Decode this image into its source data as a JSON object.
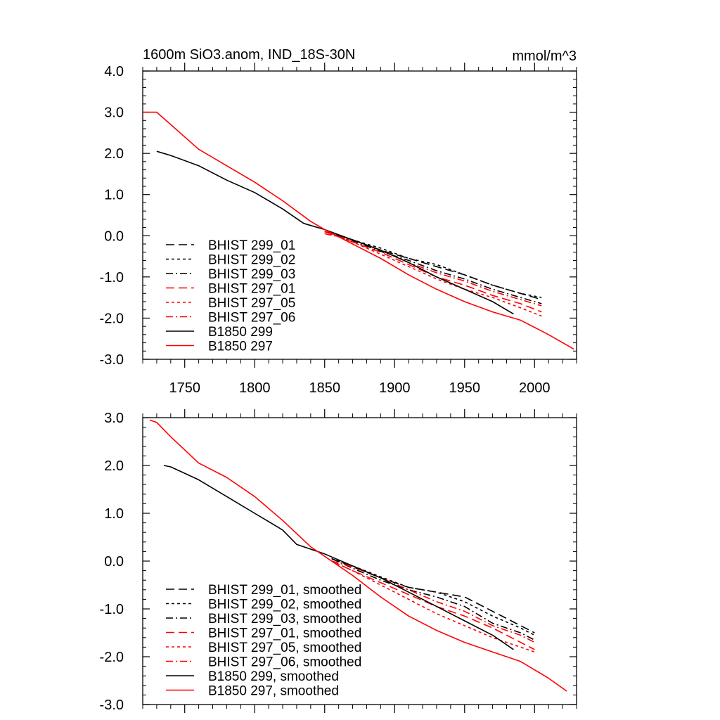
{
  "figure": {
    "title_left": "1600m SiO3.anom, IND_18S-30N",
    "title_right": "mmol/m^3"
  },
  "chart_data": [
    {
      "type": "line",
      "xlim": [
        1720,
        2030
      ],
      "ylim": [
        -3.0,
        4.0
      ],
      "x_ticks": [
        1750,
        1800,
        1850,
        1900,
        1950,
        2000
      ],
      "x_tick_labels": [
        "1750",
        "1800",
        "1850",
        "1900",
        "1950",
        "2000"
      ],
      "y_ticks": [
        4.0,
        3.0,
        2.0,
        1.0,
        0.0,
        -1.0,
        -2.0,
        -3.0
      ],
      "y_tick_labels": [
        "4.0",
        "3.0",
        "2.0",
        "1.0",
        "0.0",
        "-1.0",
        "-2.0",
        "-3.0"
      ],
      "legend_position": "bottom-left",
      "series": [
        {
          "name": "BHIST 299_01",
          "color": "#000000",
          "dash": "long-dash",
          "x": [
            1850,
            1870,
            1890,
            1910,
            1930,
            1950,
            1970,
            1990,
            2005
          ],
          "y": [
            0.1,
            -0.1,
            -0.35,
            -0.55,
            -0.75,
            -0.95,
            -1.2,
            -1.4,
            -1.55
          ]
        },
        {
          "name": "BHIST 299_02",
          "color": "#000000",
          "dash": "short-dash",
          "x": [
            1850,
            1870,
            1890,
            1910,
            1930,
            1950,
            1970,
            1990,
            2005
          ],
          "y": [
            0.1,
            -0.1,
            -0.3,
            -0.55,
            -0.7,
            -0.95,
            -1.2,
            -1.4,
            -1.5
          ]
        },
        {
          "name": "BHIST 299_03",
          "color": "#000000",
          "dash": "dash-dot",
          "x": [
            1850,
            1870,
            1890,
            1910,
            1930,
            1950,
            1970,
            1990,
            2005
          ],
          "y": [
            0.1,
            -0.12,
            -0.38,
            -0.6,
            -0.85,
            -1.05,
            -1.3,
            -1.5,
            -1.65
          ]
        },
        {
          "name": "BHIST 297_01",
          "color": "#ff0000",
          "dash": "long-dash",
          "x": [
            1850,
            1870,
            1890,
            1910,
            1930,
            1950,
            1970,
            1990,
            2005
          ],
          "y": [
            0.1,
            -0.15,
            -0.4,
            -0.7,
            -1.0,
            -1.2,
            -1.45,
            -1.65,
            -1.85
          ]
        },
        {
          "name": "BHIST 297_05",
          "color": "#ff0000",
          "dash": "short-dash",
          "x": [
            1850,
            1870,
            1890,
            1910,
            1930,
            1950,
            1970,
            1990,
            2005
          ],
          "y": [
            0.1,
            -0.15,
            -0.45,
            -0.75,
            -1.05,
            -1.3,
            -1.5,
            -1.75,
            -1.95
          ]
        },
        {
          "name": "BHIST 297_06",
          "color": "#ff0000",
          "dash": "dash-dot",
          "x": [
            1850,
            1870,
            1890,
            1910,
            1930,
            1950,
            1970,
            1990,
            2005
          ],
          "y": [
            0.05,
            -0.1,
            -0.35,
            -0.65,
            -0.9,
            -1.1,
            -1.35,
            -1.55,
            -1.7
          ]
        },
        {
          "name": "B1850 299",
          "color": "#000000",
          "dash": "solid",
          "x": [
            1730,
            1740,
            1760,
            1780,
            1800,
            1820,
            1835,
            1850,
            1870,
            1890,
            1910,
            1930,
            1950,
            1970,
            1985
          ],
          "y": [
            2.05,
            1.95,
            1.7,
            1.35,
            1.05,
            0.65,
            0.3,
            0.15,
            -0.1,
            -0.35,
            -0.65,
            -1.0,
            -1.3,
            -1.6,
            -1.9
          ]
        },
        {
          "name": "B1850 297",
          "color": "#ff0000",
          "dash": "solid",
          "x": [
            1720,
            1730,
            1740,
            1760,
            1780,
            1800,
            1820,
            1840,
            1850,
            1870,
            1890,
            1910,
            1930,
            1950,
            1970,
            1990,
            2010,
            2028
          ],
          "y": [
            3.0,
            3.0,
            2.7,
            2.1,
            1.7,
            1.3,
            0.85,
            0.35,
            0.15,
            -0.2,
            -0.55,
            -0.95,
            -1.3,
            -1.6,
            -1.85,
            -2.05,
            -2.4,
            -2.75
          ]
        }
      ]
    },
    {
      "type": "line",
      "xlim": [
        1720,
        2030
      ],
      "ylim": [
        -3.0,
        3.0
      ],
      "x_ticks": [
        1750,
        1800,
        1850,
        1900,
        1950,
        2000
      ],
      "y_ticks": [
        3.0,
        2.0,
        1.0,
        0.0,
        -1.0,
        -2.0,
        -3.0
      ],
      "y_tick_labels": [
        "3.0",
        "2.0",
        "1.0",
        "0.0",
        "-1.0",
        "-2.0",
        "-3.0"
      ],
      "legend_position": "bottom-left",
      "series": [
        {
          "name": "BHIST 299_01, smoothed",
          "color": "#000000",
          "dash": "long-dash",
          "x": [
            1855,
            1870,
            1890,
            1910,
            1930,
            1950,
            1970,
            1990,
            2000
          ],
          "y": [
            0.05,
            -0.12,
            -0.35,
            -0.55,
            -0.65,
            -0.75,
            -1.05,
            -1.35,
            -1.5
          ]
        },
        {
          "name": "BHIST 299_02, smoothed",
          "color": "#000000",
          "dash": "short-dash",
          "x": [
            1855,
            1870,
            1890,
            1910,
            1930,
            1950,
            1970,
            1990,
            2000
          ],
          "y": [
            0.05,
            -0.1,
            -0.33,
            -0.55,
            -0.65,
            -0.85,
            -1.15,
            -1.4,
            -1.55
          ]
        },
        {
          "name": "BHIST 299_03, smoothed",
          "color": "#000000",
          "dash": "dash-dot",
          "x": [
            1855,
            1870,
            1890,
            1910,
            1930,
            1950,
            1970,
            1990,
            2000
          ],
          "y": [
            0.05,
            -0.15,
            -0.4,
            -0.6,
            -0.75,
            -0.95,
            -1.3,
            -1.5,
            -1.65
          ]
        },
        {
          "name": "BHIST 297_01, smoothed",
          "color": "#ff0000",
          "dash": "long-dash",
          "x": [
            1855,
            1870,
            1890,
            1910,
            1930,
            1950,
            1970,
            1990,
            2000
          ],
          "y": [
            0.0,
            -0.2,
            -0.45,
            -0.7,
            -0.95,
            -1.15,
            -1.4,
            -1.7,
            -1.85
          ]
        },
        {
          "name": "BHIST 297_05, smoothed",
          "color": "#ff0000",
          "dash": "short-dash",
          "x": [
            1855,
            1870,
            1890,
            1910,
            1930,
            1950,
            1970,
            1990,
            2000
          ],
          "y": [
            0.0,
            -0.2,
            -0.5,
            -0.8,
            -1.1,
            -1.35,
            -1.6,
            -1.8,
            -1.9
          ]
        },
        {
          "name": "BHIST 297_06, smoothed",
          "color": "#ff0000",
          "dash": "dash-dot",
          "x": [
            1855,
            1870,
            1890,
            1910,
            1930,
            1950,
            1970,
            1990,
            2000
          ],
          "y": [
            0.0,
            -0.12,
            -0.35,
            -0.6,
            -0.85,
            -1.05,
            -1.35,
            -1.55,
            -1.7
          ]
        },
        {
          "name": "B1850 299, smoothed",
          "color": "#000000",
          "dash": "solid",
          "x": [
            1735,
            1740,
            1760,
            1780,
            1800,
            1820,
            1830,
            1840,
            1850,
            1870,
            1890,
            1910,
            1930,
            1950,
            1970,
            1985
          ],
          "y": [
            2.0,
            1.97,
            1.7,
            1.35,
            1.0,
            0.65,
            0.35,
            0.25,
            0.15,
            -0.1,
            -0.35,
            -0.65,
            -0.95,
            -1.25,
            -1.55,
            -1.85
          ]
        },
        {
          "name": "B1850 297, smoothed",
          "color": "#ff0000",
          "dash": "solid",
          "x": [
            1725,
            1730,
            1740,
            1760,
            1780,
            1800,
            1820,
            1840,
            1850,
            1870,
            1890,
            1910,
            1930,
            1950,
            1970,
            1990,
            2010,
            2023
          ],
          "y": [
            2.95,
            2.9,
            2.6,
            2.05,
            1.75,
            1.35,
            0.85,
            0.3,
            0.1,
            -0.3,
            -0.75,
            -1.15,
            -1.45,
            -1.7,
            -1.9,
            -2.1,
            -2.45,
            -2.72
          ]
        }
      ]
    }
  ]
}
